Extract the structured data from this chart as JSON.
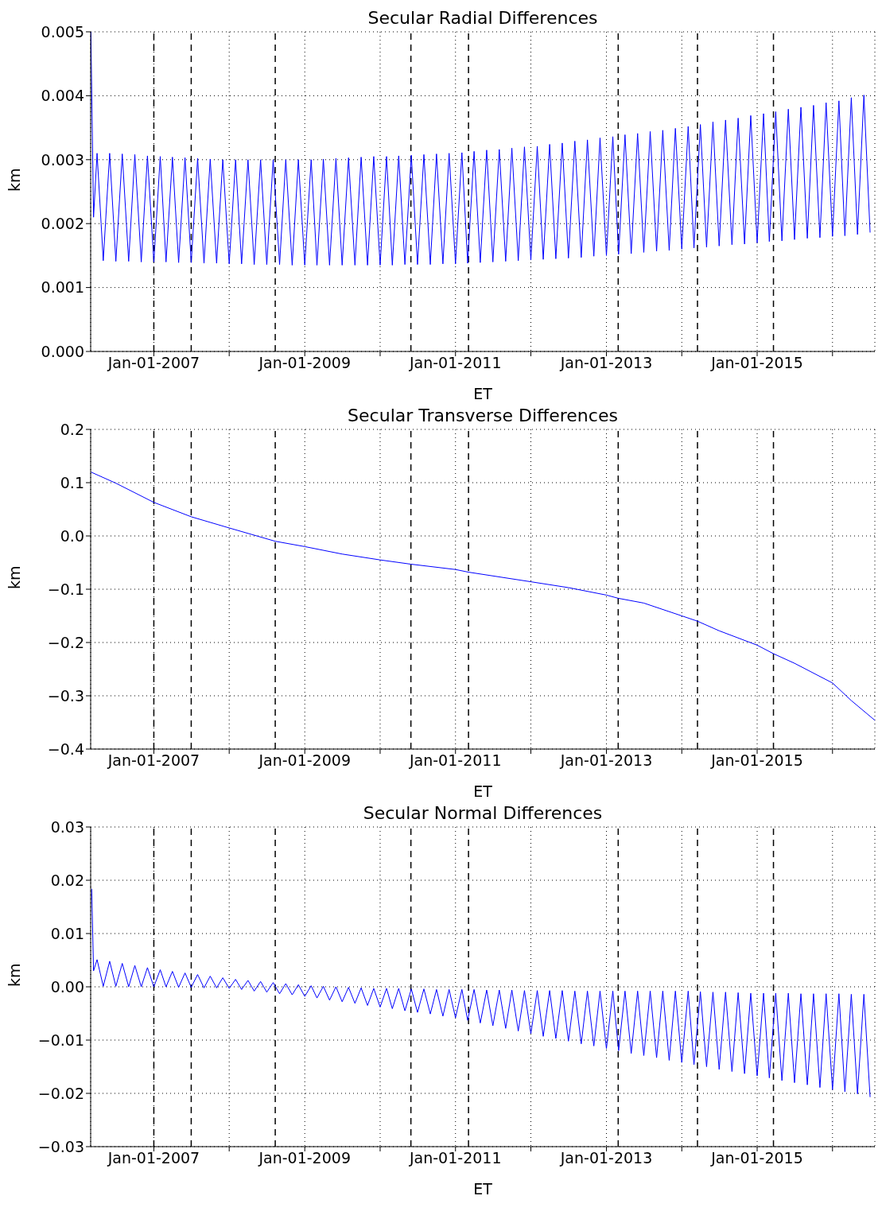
{
  "chart_data": [
    {
      "type": "line",
      "title": "Secular Radial Differences",
      "xlabel": "ET",
      "ylabel": "km",
      "grid": true,
      "marker": "none",
      "xlim": [
        "2006-03-01",
        "2016-07-24"
      ],
      "xticks": [
        {
          "value": "2007-01-01",
          "label": "Jan-01-2007"
        },
        {
          "value": "2008-01-01",
          "label": null
        },
        {
          "value": "2009-01-01",
          "label": "Jan-01-2009"
        },
        {
          "value": "2010-01-01",
          "label": null
        },
        {
          "value": "2011-01-01",
          "label": "Jan-01-2011"
        },
        {
          "value": "2012-01-01",
          "label": null
        },
        {
          "value": "2013-01-01",
          "label": "Jan-01-2013"
        },
        {
          "value": "2014-01-01",
          "label": null
        },
        {
          "value": "2015-01-01",
          "label": "Jan-01-2015"
        },
        {
          "value": "2016-01-01",
          "label": null
        }
      ],
      "ylim": [
        0,
        0.005
      ],
      "yticks": [
        {
          "value": 0,
          "label": "0.000"
        },
        0.001,
        0.002,
        0.003,
        0.004,
        0.005
      ],
      "ref_lines": [
        {
          "axis": "x",
          "value": "2007-01-01",
          "line_style": "dashed",
          "color": "#000000"
        },
        {
          "axis": "x",
          "value": "2007-07-01",
          "line_style": "dashed",
          "color": "#000000"
        },
        {
          "axis": "x",
          "value": "2008-08-11",
          "line_style": "dashed",
          "color": "#000000"
        },
        {
          "axis": "x",
          "value": "2010-05-30",
          "line_style": "dashed",
          "color": "#000000"
        },
        {
          "axis": "x",
          "value": "2011-03-05",
          "line_style": "dashed",
          "color": "#000000"
        },
        {
          "axis": "x",
          "value": "2013-02-27",
          "line_style": "dashed",
          "color": "#000000"
        },
        {
          "axis": "x",
          "value": "2014-03-18",
          "line_style": "dashed",
          "color": "#000000"
        },
        {
          "axis": "x",
          "value": "2015-03-21",
          "line_style": "dashed",
          "color": "#000000"
        }
      ],
      "series": [
        {
          "color": "#0000ff",
          "x": [
            "2006-03-02",
            "2006-03-15",
            "2006-04",
            "2006-05",
            "2006-06",
            "2006-07",
            "2006-08",
            "2006-09",
            "2006-10",
            "2006-11",
            "2006-12",
            "2007-01",
            "2007-02",
            "2007-03",
            "2007-04",
            "2007-05",
            "2007-06",
            "2007-07",
            "2007-08",
            "2007-09",
            "2007-10",
            "2007-11",
            "2007-12",
            "2008-01",
            "2008-02",
            "2008-03",
            "2008-04",
            "2008-05",
            "2008-06",
            "2008-07",
            "2008-08",
            "2008-09",
            "2008-10",
            "2008-11",
            "2008-12",
            "2009-01",
            "2009-02",
            "2009-03",
            "2009-04",
            "2009-05",
            "2009-06",
            "2009-07",
            "2009-08",
            "2009-09",
            "2009-10",
            "2009-11",
            "2009-12",
            "2010-01",
            "2010-02",
            "2010-03",
            "2010-04",
            "2010-05",
            "2010-06",
            "2010-07",
            "2010-08",
            "2010-09",
            "2010-10",
            "2010-11",
            "2010-12",
            "2011-01",
            "2011-02",
            "2011-03",
            "2011-04",
            "2011-05",
            "2011-06",
            "2011-07",
            "2011-08",
            "2011-09",
            "2011-10",
            "2011-11",
            "2011-12",
            "2012-01",
            "2012-02",
            "2012-03",
            "2012-04",
            "2012-05",
            "2012-06",
            "2012-07",
            "2012-08",
            "2012-09",
            "2012-10",
            "2012-11",
            "2012-12",
            "2013-01",
            "2013-02",
            "2013-03",
            "2013-04",
            "2013-05",
            "2013-06",
            "2013-07",
            "2013-08",
            "2013-09",
            "2013-10",
            "2013-11",
            "2013-12",
            "2014-01",
            "2014-02",
            "2014-03",
            "2014-04",
            "2014-05",
            "2014-06",
            "2014-07",
            "2014-08",
            "2014-09",
            "2014-10",
            "2014-11",
            "2014-12",
            "2015-01",
            "2015-02",
            "2015-03",
            "2015-04",
            "2015-05",
            "2015-06",
            "2015-07",
            "2015-08",
            "2015-09",
            "2015-10",
            "2015-11",
            "2015-12",
            "2016-01",
            "2016-02",
            "2016-03",
            "2016-04",
            "2016-05",
            "2016-06",
            "2016-07"
          ],
          "values": [
            0.005,
            0.0021,
            0.0031,
            0.00142,
            0.0031,
            0.00141,
            0.00309,
            0.00141,
            0.00308,
            0.0014,
            0.00306,
            0.0014,
            0.00305,
            0.0014,
            0.00304,
            0.00139,
            0.00303,
            0.00139,
            0.00302,
            0.00138,
            0.00301,
            0.00138,
            0.003,
            0.00137,
            0.003,
            0.00137,
            0.003,
            0.00136,
            0.003,
            0.00136,
            0.003,
            0.00136,
            0.003,
            0.00135,
            0.003,
            0.00135,
            0.003,
            0.00135,
            0.00301,
            0.00135,
            0.00302,
            0.00135,
            0.00303,
            0.00135,
            0.00304,
            0.00135,
            0.00305,
            0.00135,
            0.00305,
            0.00135,
            0.00306,
            0.00136,
            0.00307,
            0.00136,
            0.00308,
            0.00136,
            0.00309,
            0.00137,
            0.0031,
            0.00137,
            0.00311,
            0.00138,
            0.00313,
            0.00139,
            0.00315,
            0.0014,
            0.00316,
            0.00141,
            0.00318,
            0.00142,
            0.0032,
            0.00143,
            0.00321,
            0.00144,
            0.00324,
            0.00145,
            0.00326,
            0.00146,
            0.00329,
            0.00147,
            0.00331,
            0.00149,
            0.00334,
            0.0015,
            0.00336,
            0.00152,
            0.00339,
            0.00153,
            0.00341,
            0.00155,
            0.00344,
            0.00157,
            0.00346,
            0.00158,
            0.00349,
            0.0016,
            0.00352,
            0.00162,
            0.00355,
            0.00163,
            0.00359,
            0.00165,
            0.00362,
            0.00167,
            0.00365,
            0.00168,
            0.00369,
            0.0017,
            0.00372,
            0.00172,
            0.00375,
            0.00173,
            0.00379,
            0.00175,
            0.00382,
            0.00177,
            0.00385,
            0.00178,
            0.00389,
            0.0018,
            0.00392,
            0.00181,
            0.00397,
            0.00183,
            0.00401,
            0.00186
          ]
        }
      ]
    },
    {
      "type": "line",
      "title": "Secular Transverse Differences",
      "xlabel": "ET",
      "ylabel": "km",
      "grid": true,
      "marker": "none",
      "xlim": [
        "2006-03-01",
        "2016-07-24"
      ],
      "xticks": [
        {
          "value": "2007-01-01",
          "label": "Jan-01-2007"
        },
        {
          "value": "2008-01-01",
          "label": null
        },
        {
          "value": "2009-01-01",
          "label": "Jan-01-2009"
        },
        {
          "value": "2010-01-01",
          "label": null
        },
        {
          "value": "2011-01-01",
          "label": "Jan-01-2011"
        },
        {
          "value": "2012-01-01",
          "label": null
        },
        {
          "value": "2013-01-01",
          "label": "Jan-01-2013"
        },
        {
          "value": "2014-01-01",
          "label": null
        },
        {
          "value": "2015-01-01",
          "label": "Jan-01-2015"
        },
        {
          "value": "2016-01-01",
          "label": null
        }
      ],
      "ylim": [
        -0.4,
        0.2
      ],
      "yticks": [
        {
          "value": -0.4,
          "label": "−0.4"
        },
        {
          "value": -0.3,
          "label": "−0.3"
        },
        {
          "value": -0.2,
          "label": "−0.2"
        },
        {
          "value": -0.1,
          "label": "−0.1"
        },
        {
          "value": 0,
          "label": "0.0"
        },
        0.1,
        0.2
      ],
      "ref_lines": [
        {
          "axis": "x",
          "value": "2007-01-01",
          "line_style": "dashed",
          "color": "#000000"
        },
        {
          "axis": "x",
          "value": "2007-07-01",
          "line_style": "dashed",
          "color": "#000000"
        },
        {
          "axis": "x",
          "value": "2008-08-11",
          "line_style": "dashed",
          "color": "#000000"
        },
        {
          "axis": "x",
          "value": "2010-05-30",
          "line_style": "dashed",
          "color": "#000000"
        },
        {
          "axis": "x",
          "value": "2011-03-05",
          "line_style": "dashed",
          "color": "#000000"
        },
        {
          "axis": "x",
          "value": "2013-02-27",
          "line_style": "dashed",
          "color": "#000000"
        },
        {
          "axis": "x",
          "value": "2014-03-18",
          "line_style": "dashed",
          "color": "#000000"
        },
        {
          "axis": "x",
          "value": "2015-03-21",
          "line_style": "dashed",
          "color": "#000000"
        }
      ],
      "series": [
        {
          "color": "#0000ff",
          "x": [
            "2006-03-02",
            "2006-07-01",
            "2007-01-01",
            "2007-07-01",
            "2008-01-01",
            "2008-08-11",
            "2009-01-01",
            "2009-07-01",
            "2010-01-01",
            "2010-05-30",
            "2011-01-01",
            "2011-03-05",
            "2012-01-01",
            "2012-07-01",
            "2013-01-01",
            "2013-02-27",
            "2013-07-01",
            "2014-01-01",
            "2014-03-18",
            "2014-07-01",
            "2015-01-01",
            "2015-03-21",
            "2015-07-01",
            "2016-01-01",
            "2016-04-01",
            "2016-07-24"
          ],
          "values": [
            0.12,
            0.099,
            0.063,
            0.036,
            0.015,
            -0.01,
            -0.02,
            -0.034,
            -0.045,
            -0.053,
            -0.063,
            -0.068,
            -0.086,
            -0.097,
            -0.111,
            -0.117,
            -0.126,
            -0.15,
            -0.16,
            -0.178,
            -0.205,
            -0.221,
            -0.239,
            -0.276,
            -0.309,
            -0.346
          ]
        }
      ]
    },
    {
      "type": "line",
      "title": "Secular Normal Differences",
      "xlabel": "ET",
      "ylabel": "km",
      "grid": true,
      "marker": "none",
      "xlim": [
        "2006-03-01",
        "2016-07-24"
      ],
      "xticks": [
        {
          "value": "2007-01-01",
          "label": "Jan-01-2007"
        },
        {
          "value": "2008-01-01",
          "label": null
        },
        {
          "value": "2009-01-01",
          "label": "Jan-01-2009"
        },
        {
          "value": "2010-01-01",
          "label": null
        },
        {
          "value": "2011-01-01",
          "label": "Jan-01-2011"
        },
        {
          "value": "2012-01-01",
          "label": null
        },
        {
          "value": "2013-01-01",
          "label": "Jan-01-2013"
        },
        {
          "value": "2014-01-01",
          "label": null
        },
        {
          "value": "2015-01-01",
          "label": "Jan-01-2015"
        },
        {
          "value": "2016-01-01",
          "label": null
        }
      ],
      "ylim": [
        -0.03,
        0.03
      ],
      "yticks": [
        {
          "value": -0.03,
          "label": "−0.03"
        },
        {
          "value": -0.02,
          "label": "−0.02"
        },
        {
          "value": -0.01,
          "label": "−0.01"
        },
        {
          "value": 0,
          "label": "0.00"
        },
        0.01,
        0.02,
        0.03
      ],
      "ref_lines": [
        {
          "axis": "x",
          "value": "2007-01-01",
          "line_style": "dashed",
          "color": "#000000"
        },
        {
          "axis": "x",
          "value": "2007-07-01",
          "line_style": "dashed",
          "color": "#000000"
        },
        {
          "axis": "x",
          "value": "2008-08-11",
          "line_style": "dashed",
          "color": "#000000"
        },
        {
          "axis": "x",
          "value": "2010-05-30",
          "line_style": "dashed",
          "color": "#000000"
        },
        {
          "axis": "x",
          "value": "2011-03-05",
          "line_style": "dashed",
          "color": "#000000"
        },
        {
          "axis": "x",
          "value": "2013-02-27",
          "line_style": "dashed",
          "color": "#000000"
        },
        {
          "axis": "x",
          "value": "2014-03-18",
          "line_style": "dashed",
          "color": "#000000"
        },
        {
          "axis": "x",
          "value": "2015-03-21",
          "line_style": "dashed",
          "color": "#000000"
        }
      ],
      "series": [
        {
          "color": "#0000ff",
          "x": [
            "2006-03-06",
            "2006-03-15",
            "2006-04",
            "2006-05",
            "2006-06",
            "2006-07",
            "2006-08",
            "2006-09",
            "2006-10",
            "2006-11",
            "2006-12",
            "2007-01",
            "2007-02",
            "2007-03",
            "2007-04",
            "2007-05",
            "2007-06",
            "2007-07",
            "2007-08",
            "2007-09",
            "2007-10",
            "2007-11",
            "2007-12",
            "2008-01",
            "2008-02",
            "2008-03",
            "2008-04",
            "2008-05",
            "2008-06",
            "2008-07",
            "2008-08",
            "2008-09",
            "2008-10",
            "2008-11",
            "2008-12",
            "2009-01",
            "2009-02",
            "2009-03",
            "2009-04",
            "2009-05",
            "2009-06",
            "2009-07",
            "2009-08",
            "2009-09",
            "2009-10",
            "2009-11",
            "2009-12",
            "2010-01",
            "2010-02",
            "2010-03",
            "2010-04",
            "2010-05",
            "2010-06",
            "2010-07",
            "2010-08",
            "2010-09",
            "2010-10",
            "2010-11",
            "2010-12",
            "2011-01",
            "2011-02",
            "2011-03",
            "2011-04",
            "2011-05",
            "2011-06",
            "2011-07",
            "2011-08",
            "2011-09",
            "2011-10",
            "2011-11",
            "2011-12",
            "2012-01",
            "2012-02",
            "2012-03",
            "2012-04",
            "2012-05",
            "2012-06",
            "2012-07",
            "2012-08",
            "2012-09",
            "2012-10",
            "2012-11",
            "2012-12",
            "2013-01",
            "2013-02",
            "2013-03",
            "2013-04",
            "2013-05",
            "2013-06",
            "2013-07",
            "2013-08",
            "2013-09",
            "2013-10",
            "2013-11",
            "2013-12",
            "2014-01",
            "2014-02",
            "2014-03",
            "2014-04",
            "2014-05",
            "2014-06",
            "2014-07",
            "2014-08",
            "2014-09",
            "2014-10",
            "2014-11",
            "2014-12",
            "2015-01",
            "2015-02",
            "2015-03",
            "2015-04",
            "2015-05",
            "2015-06",
            "2015-07",
            "2015-08",
            "2015-09",
            "2015-10",
            "2015-11",
            "2015-12",
            "2016-01",
            "2016-02",
            "2016-03",
            "2016-04",
            "2016-05",
            "2016-06",
            "2016-07"
          ],
          "values": [
            0.0184,
            0.003,
            0.0051,
            0.0001,
            0.0048,
            0.0001,
            0.0044,
            0,
            0.004,
            0,
            0.0036,
            0,
            0.0032,
            0,
            0.0029,
            -0.0001,
            0.0026,
            -0.0001,
            0.0023,
            -0.0002,
            0.002,
            -0.0002,
            0.0017,
            -0.0003,
            0.0014,
            -0.0005,
            0.0012,
            -0.0008,
            0.001,
            -0.001,
            0.0008,
            -0.0013,
            0.0006,
            -0.0015,
            0.0004,
            -0.0018,
            0.0002,
            -0.0021,
            0.0001,
            -0.0025,
            0,
            -0.0028,
            -0.0001,
            -0.0031,
            -0.0002,
            -0.0035,
            -0.0003,
            -0.0038,
            -0.0003,
            -0.0041,
            -0.0003,
            -0.0045,
            -0.0004,
            -0.0048,
            -0.0004,
            -0.0051,
            -0.0005,
            -0.0055,
            -0.0005,
            -0.0058,
            -0.0005,
            -0.0063,
            -0.0005,
            -0.0068,
            -0.0006,
            -0.0073,
            -0.0006,
            -0.0078,
            -0.0006,
            -0.0083,
            -0.0007,
            -0.0088,
            -0.0007,
            -0.0093,
            -0.0007,
            -0.0097,
            -0.0007,
            -0.0102,
            -0.0008,
            -0.0107,
            -0.0008,
            -0.0111,
            -0.0008,
            -0.0116,
            -0.0008,
            -0.012,
            -0.0008,
            -0.0125,
            -0.0008,
            -0.0129,
            -0.0008,
            -0.0133,
            -0.0008,
            -0.0138,
            -0.0008,
            -0.0142,
            -0.0008,
            -0.0146,
            -0.0009,
            -0.015,
            -0.001,
            -0.0155,
            -0.001,
            -0.0159,
            -0.0011,
            -0.0163,
            -0.0012,
            -0.0167,
            -0.0012,
            -0.0171,
            -0.0012,
            -0.0176,
            -0.0012,
            -0.018,
            -0.0013,
            -0.0184,
            -0.0013,
            -0.0189,
            -0.0013,
            -0.0193,
            -0.0013,
            -0.0197,
            -0.0014,
            -0.0201,
            -0.0014,
            -0.0207
          ]
        }
      ]
    }
  ]
}
